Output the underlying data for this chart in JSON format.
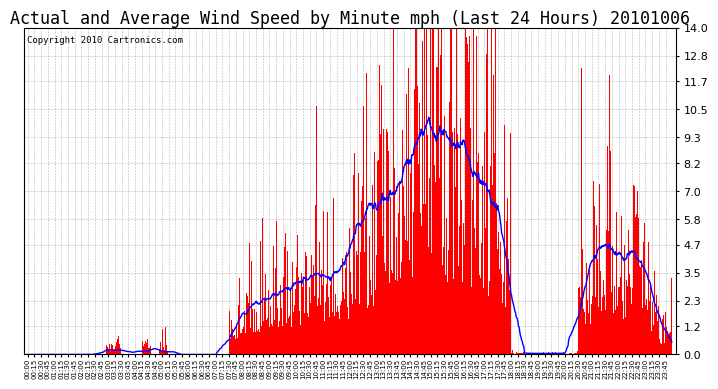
{
  "title": "Actual and Average Wind Speed by Minute mph (Last 24 Hours) 20101006",
  "copyright": "Copyright 2010 Cartronics.com",
  "yticks": [
    0.0,
    1.2,
    2.3,
    3.5,
    4.7,
    5.8,
    7.0,
    8.2,
    9.3,
    10.5,
    11.7,
    12.8,
    14.0
  ],
  "ylim": [
    0.0,
    14.0
  ],
  "bar_color": "#ff0000",
  "line_color": "#0000ff",
  "background_color": "#ffffff",
  "grid_color": "#888888",
  "title_fontsize": 12,
  "copyright_fontsize": 6.5,
  "xtick_fontsize": 5,
  "ytick_fontsize": 8,
  "xtick_interval": 15
}
